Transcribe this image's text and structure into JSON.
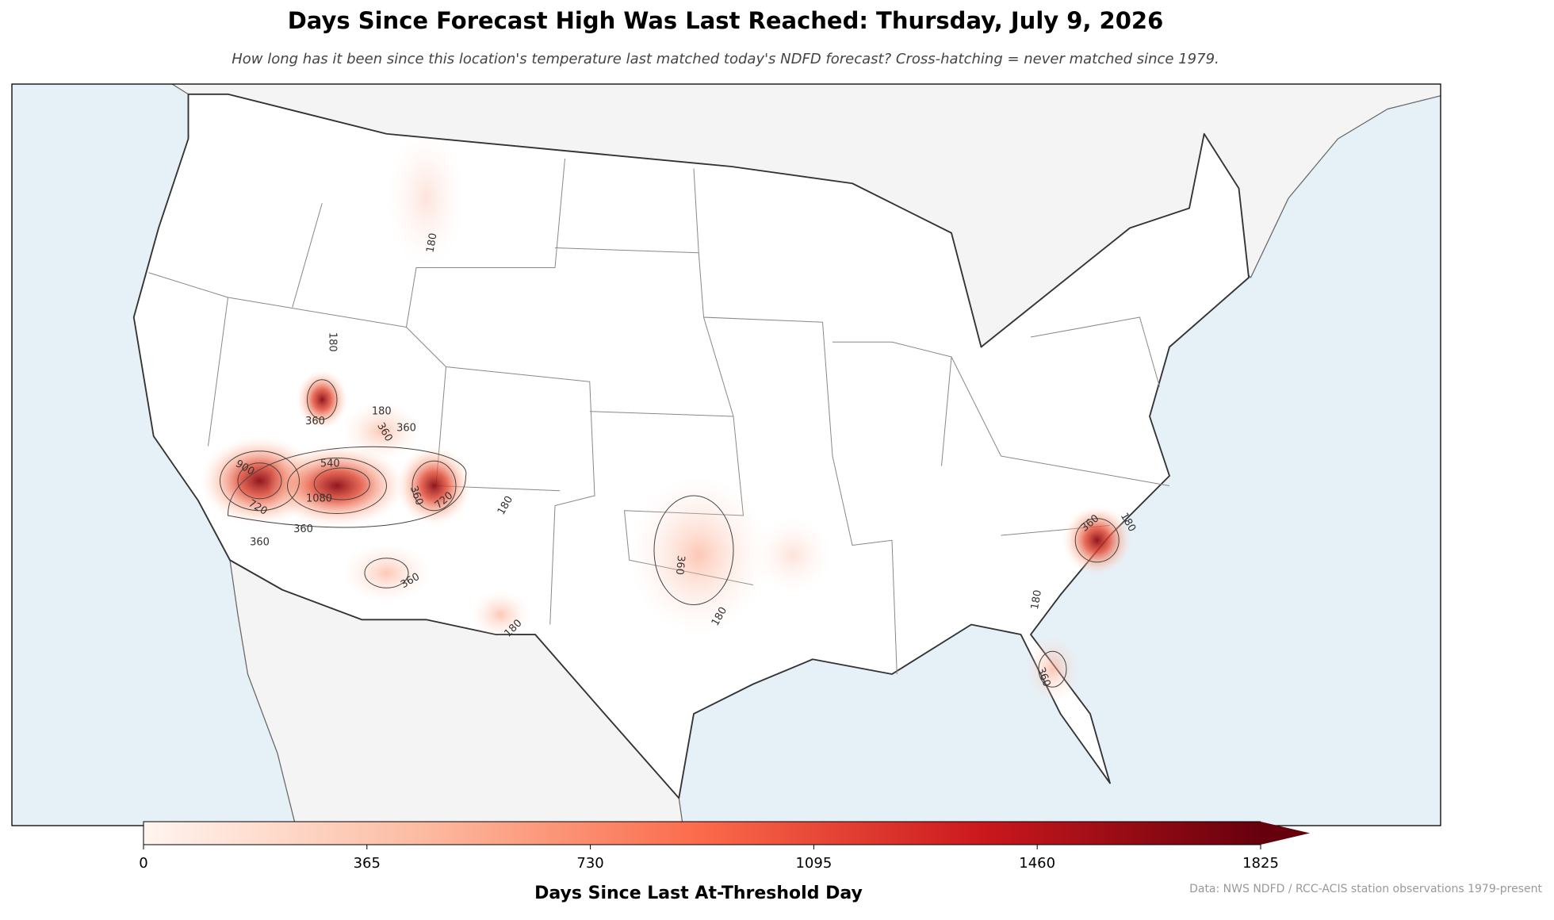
{
  "title": "Days Since Forecast High Was Last Reached: Thursday, July 9, 2026",
  "subtitle": "How long has it been since this location's temperature last matched today's NDFD forecast? Cross-hatching = never matched since 1979.",
  "colorbar": {
    "label": "Days Since Last At-Threshold Day",
    "lim": [
      0,
      1825
    ],
    "ticks": [
      0,
      365,
      730,
      1095,
      1460,
      1825
    ],
    "colors": [
      "#fff5f0",
      "#fcbba1",
      "#fb6a4a",
      "#cb181d",
      "#67000d"
    ]
  },
  "contour_labels": [
    180,
    180,
    360,
    180,
    360,
    360,
    900,
    540,
    1080,
    720,
    360,
    360,
    360,
    720,
    180,
    360,
    180,
    180,
    360,
    180,
    360,
    360,
    180
  ],
  "source": "Data: NWS NDFD / RCC-ACIS station observations 1979-present"
}
